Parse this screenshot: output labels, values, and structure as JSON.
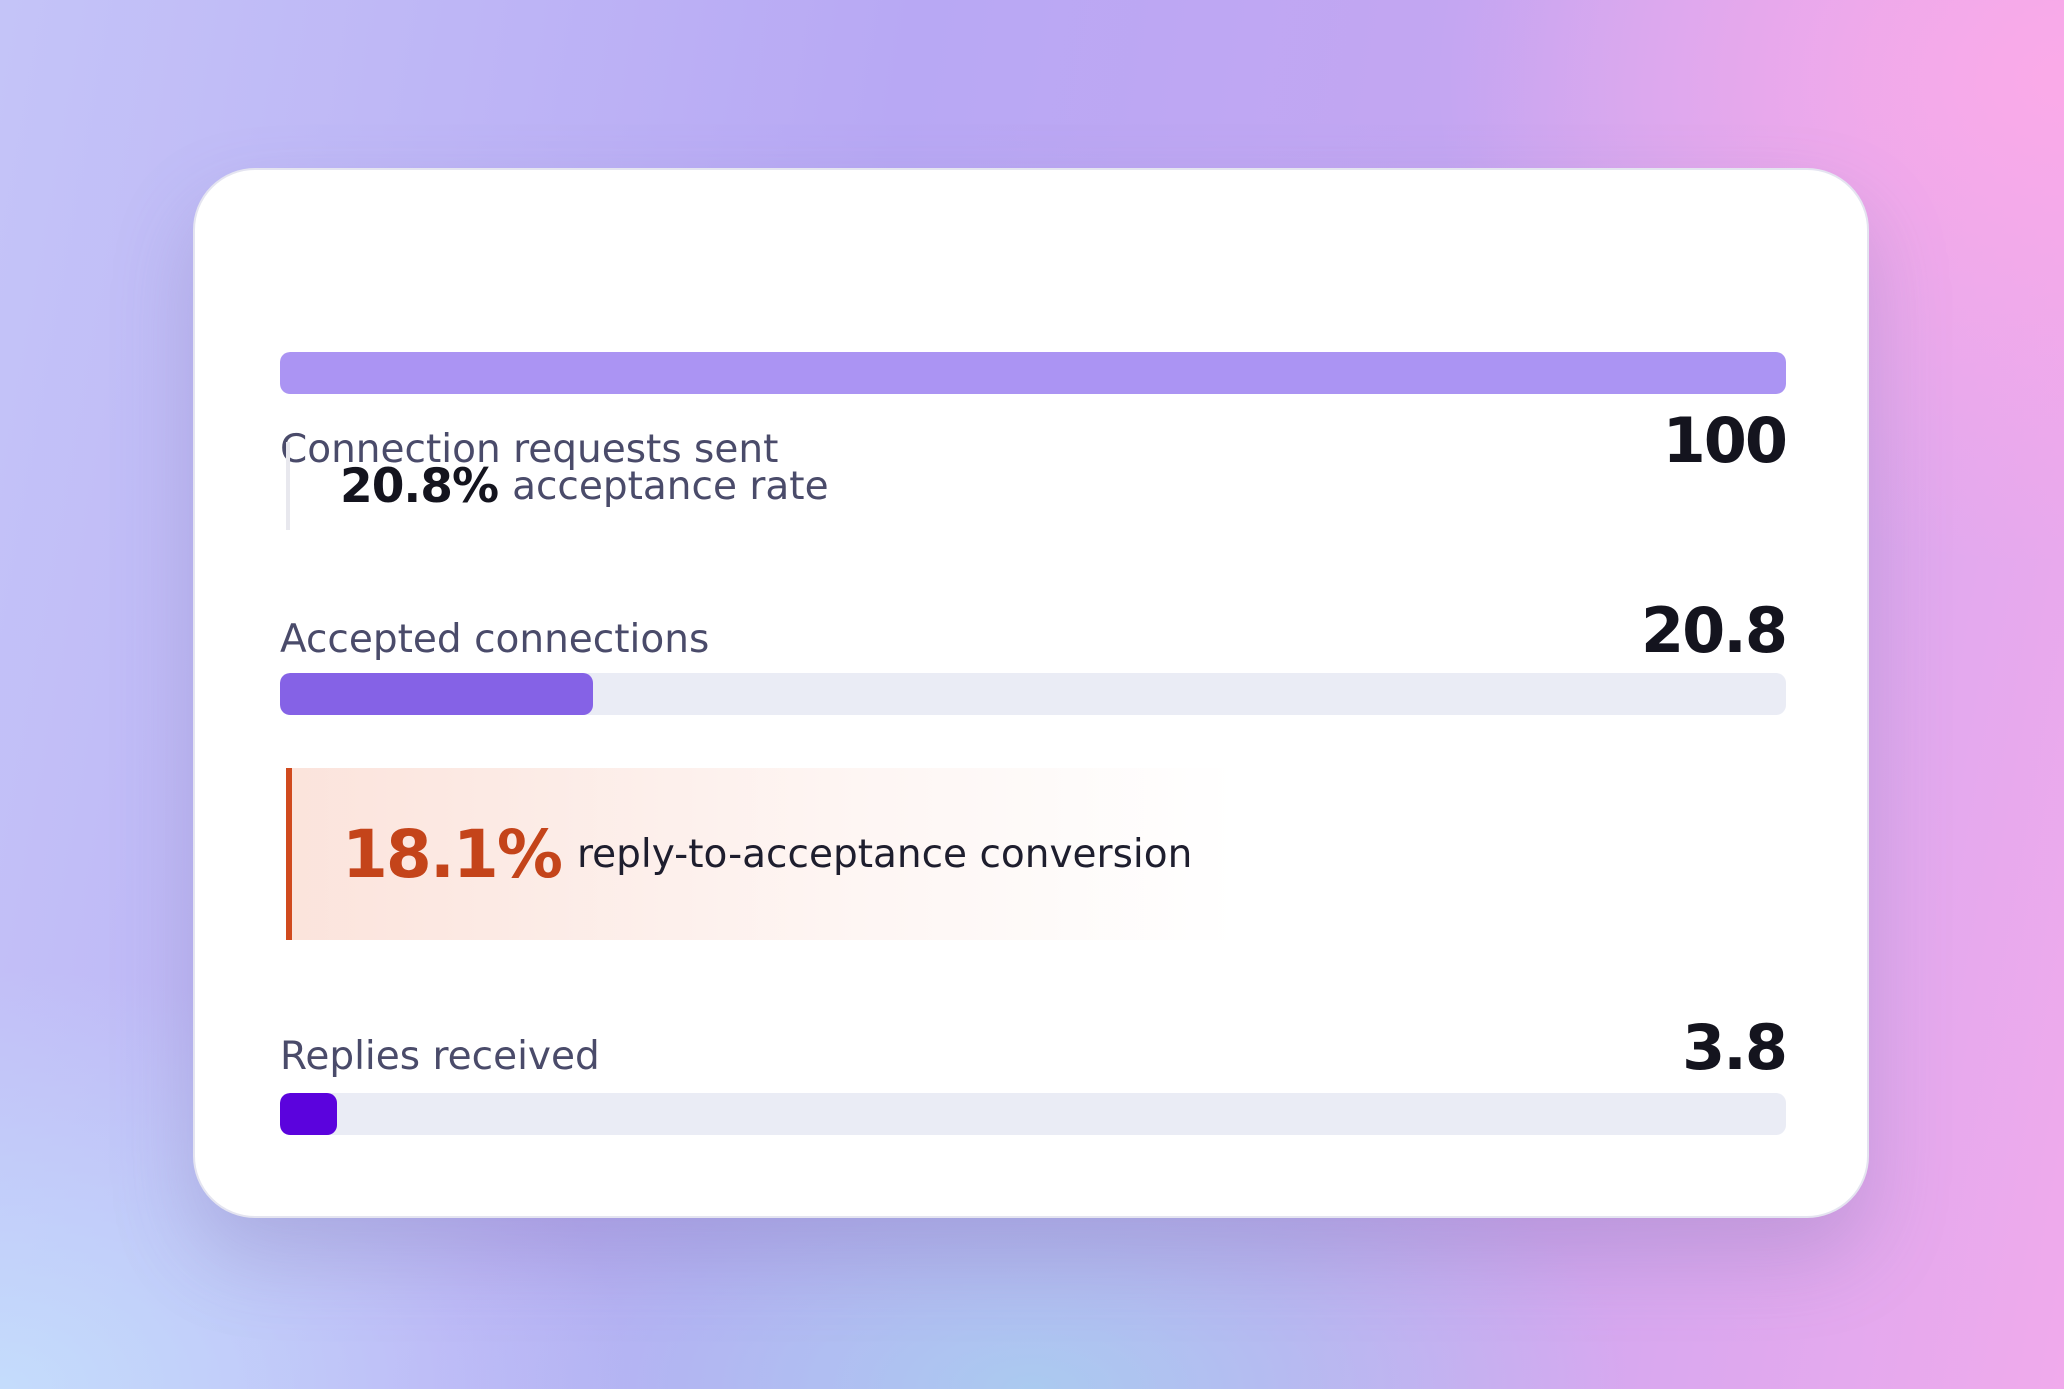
{
  "funnel": {
    "stages": [
      {
        "label": "Connection requests sent",
        "value": "100",
        "fill_percent": 100,
        "color": "#ab94f3"
      },
      {
        "label": "Accepted connections",
        "value": "20.8",
        "fill_percent": 20.8,
        "color": "#8562e6"
      },
      {
        "label": "Replies received",
        "value": "3.8",
        "fill_percent": 3.8,
        "color": "#5b03dd"
      }
    ],
    "conversions": [
      {
        "percent": "20.8%",
        "text": "acceptance rate"
      },
      {
        "percent": "18.1%",
        "text": "reply-to-acceptance conversion",
        "highlight_color": "#c4441a"
      }
    ]
  }
}
